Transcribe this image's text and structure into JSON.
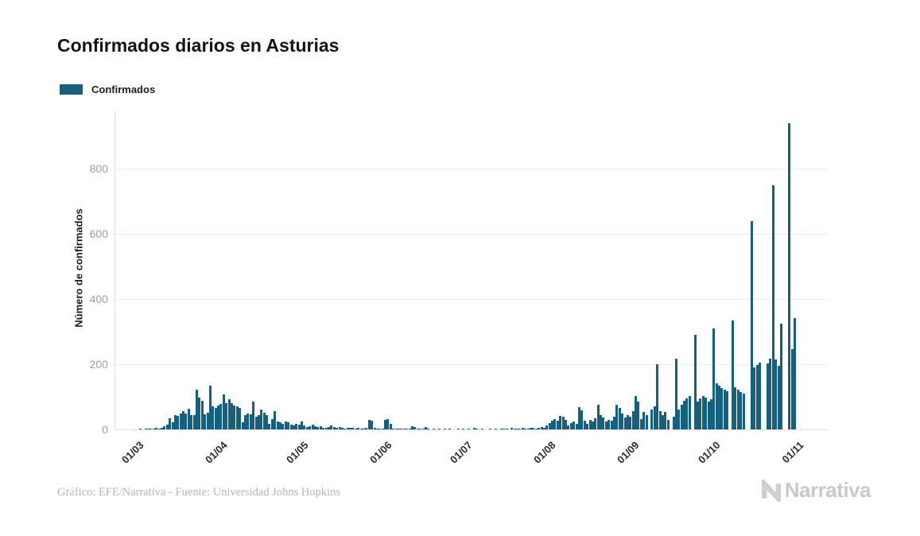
{
  "title": "Confirmados diarios en Asturias",
  "legend": {
    "label": "Confirmados",
    "color": "#15607e"
  },
  "footer": {
    "credit": "Gráfico: EFE/Narrativa - Fuente: Universidad Johns Hopkins"
  },
  "logo": {
    "text": "Narrativa"
  },
  "chart_data": {
    "type": "bar",
    "title": "Confirmados diarios en Asturias",
    "series_name": "Confirmados",
    "bar_color": "#15607e",
    "ylabel": "Número de confirmados",
    "xlabel": "",
    "y_ticks": [
      0,
      200,
      400,
      600,
      800
    ],
    "ylim": [
      0,
      975
    ],
    "grid": "horizontal",
    "legend_position": "top-left",
    "x_tick_labels": [
      "01/03",
      "01/04",
      "01/05",
      "01/06",
      "01/07",
      "01/08",
      "01/09",
      "01/10",
      "01/11"
    ],
    "x_description": "daily values from 01/03/2020 (March 1) to 31/10/2020, one bar per day",
    "values": [
      0,
      1,
      0,
      1,
      2,
      3,
      2,
      4,
      3,
      6,
      9,
      14,
      33,
      22,
      45,
      41,
      49,
      57,
      49,
      63,
      43,
      45,
      123,
      97,
      88,
      47,
      51,
      135,
      71,
      67,
      73,
      78,
      108,
      81,
      92,
      80,
      74,
      71,
      67,
      23,
      43,
      49,
      47,
      85,
      39,
      43,
      61,
      51,
      45,
      16,
      31,
      55,
      24,
      21,
      18,
      25,
      22,
      15,
      12,
      18,
      15,
      25,
      12,
      8,
      10,
      14,
      9,
      7,
      10,
      6,
      5,
      8,
      12,
      7,
      5,
      8,
      4,
      3,
      6,
      4,
      5,
      3,
      4,
      2,
      3,
      5,
      30,
      28,
      4,
      3,
      2,
      3,
      30,
      32,
      18,
      3,
      2,
      1,
      2,
      1,
      3,
      2,
      10,
      8,
      2,
      1,
      2,
      8,
      1,
      0,
      1,
      0,
      1,
      0,
      1,
      0,
      1,
      0,
      0,
      1,
      0,
      1,
      0,
      1,
      0,
      5,
      1,
      0,
      1,
      0,
      0,
      1,
      0,
      1,
      0,
      1,
      2,
      1,
      0,
      5,
      2,
      1,
      3,
      4,
      2,
      3,
      6,
      4,
      3,
      5,
      8,
      6,
      12,
      20,
      28,
      32,
      26,
      42,
      38,
      30,
      12,
      20,
      25,
      18,
      69,
      59,
      28,
      16,
      30,
      25,
      35,
      76,
      45,
      37,
      24,
      30,
      28,
      40,
      76,
      65,
      49,
      37,
      43,
      40,
      55,
      102,
      85,
      32,
      53,
      45,
      0,
      60,
      70,
      201,
      55,
      45,
      53,
      30,
      0,
      40,
      218,
      61,
      75,
      88,
      95,
      102,
      0,
      291,
      85,
      95,
      102,
      98,
      85,
      92,
      309,
      142,
      135,
      128,
      122,
      118,
      0,
      333,
      130,
      122,
      115,
      110,
      0,
      0,
      640,
      190,
      198,
      205,
      0,
      0,
      203,
      218,
      748,
      215,
      195,
      325,
      0,
      0,
      939,
      246,
      342
    ]
  }
}
